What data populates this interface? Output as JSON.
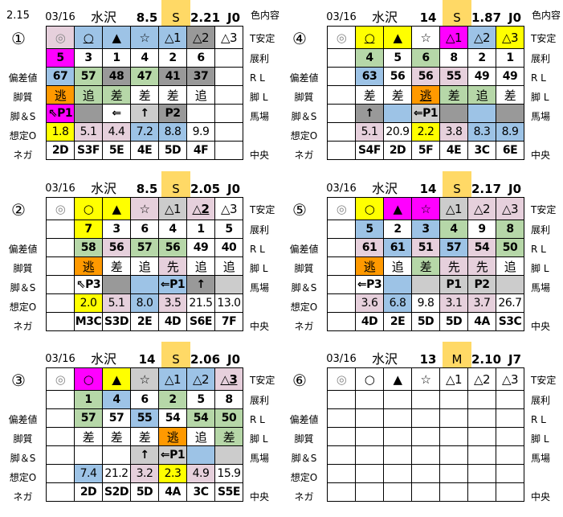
{
  "top_left_value": "2.15",
  "header_color_label": "色内容",
  "left_labels": [
    "",
    "",
    "偏差値",
    "脚質",
    "脚＆S",
    "想定O",
    "ネガ"
  ],
  "right_labels": [
    "T安定",
    "展利",
    "R L",
    "脚 L",
    "馬場",
    "",
    "中央"
  ],
  "colors": {
    "w": "#ffffff",
    "p": "#e6d0dc",
    "b": "#9dc3e6",
    "g": "#b6d7a8",
    "d": "#999999",
    "l": "#cccccc",
    "m": "#ff00ff",
    "y": "#ffff00",
    "o": "#ff9900",
    "track": "#ffd966"
  },
  "panels": [
    {
      "id": "①",
      "date": "03/16",
      "place": "水沢",
      "num": "8.5",
      "track": "S",
      "ratio": "2.21",
      "jv": "J0",
      "show_color_label": true,
      "rows": [
        [
          [
            "◎",
            "p"
          ],
          [
            "○",
            "b",
            "u"
          ],
          [
            "▲",
            "b"
          ],
          [
            "☆",
            "b"
          ],
          [
            "△1",
            "b"
          ],
          [
            "△2",
            "d"
          ],
          [
            "△3",
            "w"
          ]
        ],
        [
          [
            "5",
            "m"
          ],
          [
            "3",
            "w"
          ],
          [
            "1",
            "w"
          ],
          [
            "4",
            "w"
          ],
          [
            "2",
            "w"
          ],
          [
            "6",
            "w"
          ],
          [
            "",
            "w"
          ]
        ],
        [
          [
            "67",
            "b"
          ],
          [
            "57",
            "g"
          ],
          [
            "48",
            "d"
          ],
          [
            "47",
            "g"
          ],
          [
            "41",
            "d"
          ],
          [
            "37",
            "d"
          ],
          [
            "",
            "w"
          ]
        ],
        [
          [
            "逃",
            "o"
          ],
          [
            "追",
            "g"
          ],
          [
            "差",
            "g"
          ],
          [
            "差",
            "w"
          ],
          [
            "差",
            "w"
          ],
          [
            "追",
            "w"
          ],
          [
            "",
            "w"
          ]
        ],
        [
          [
            "⇖P1",
            "m"
          ],
          [
            "",
            "d"
          ],
          [
            "⇐",
            "w"
          ],
          [
            "↑",
            "l"
          ],
          [
            "P2",
            "d"
          ],
          [
            "",
            "w"
          ],
          [
            "",
            "w"
          ]
        ],
        [
          [
            "1.8",
            "y"
          ],
          [
            "5.1",
            "p"
          ],
          [
            "4.4",
            "p"
          ],
          [
            "7.2",
            "b"
          ],
          [
            "8.8",
            "b"
          ],
          [
            "9.9",
            "w"
          ],
          [
            "",
            "w"
          ]
        ],
        [
          [
            "2D",
            "w"
          ],
          [
            "S3F",
            "w"
          ],
          [
            "5E",
            "w"
          ],
          [
            "4E",
            "w"
          ],
          [
            "5D",
            "w"
          ],
          [
            "4F",
            "w"
          ],
          [
            "",
            "w"
          ]
        ]
      ]
    },
    {
      "id": "④",
      "date": "03/16",
      "place": "水沢",
      "num": "14",
      "track": "S",
      "ratio": "1.87",
      "jv": "J0",
      "show_color_label": true,
      "rows": [
        [
          [
            "◎",
            "w"
          ],
          [
            "○",
            "y",
            "u"
          ],
          [
            "▲",
            "y"
          ],
          [
            "☆",
            "w"
          ],
          [
            "△1",
            "m"
          ],
          [
            "△2",
            "b"
          ],
          [
            "△3",
            "y"
          ]
        ],
        [
          [
            "",
            "w"
          ],
          [
            "4",
            "g"
          ],
          [
            "5",
            "w"
          ],
          [
            "6",
            "g"
          ],
          [
            "8",
            "w"
          ],
          [
            "2",
            "w"
          ],
          [
            "1",
            "w"
          ]
        ],
        [
          [
            "",
            "w"
          ],
          [
            "63",
            "b"
          ],
          [
            "56",
            "w"
          ],
          [
            "56",
            "p"
          ],
          [
            "55",
            "p"
          ],
          [
            "49",
            "w"
          ],
          [
            "49",
            "w"
          ]
        ],
        [
          [
            "",
            "w"
          ],
          [
            "差",
            "w"
          ],
          [
            "差",
            "w"
          ],
          [
            "逃",
            "o",
            "u"
          ],
          [
            "差",
            "g"
          ],
          [
            "追",
            "g"
          ],
          [
            "差",
            "w"
          ]
        ],
        [
          [
            "",
            "w"
          ],
          [
            "↑",
            "d"
          ],
          [
            "",
            "b"
          ],
          [
            "⇐P1",
            "l"
          ],
          [
            "",
            "d"
          ],
          [
            "",
            "b"
          ],
          [
            "",
            "d"
          ]
        ],
        [
          [
            "",
            "w"
          ],
          [
            "5.1",
            "p"
          ],
          [
            "20.9",
            "w"
          ],
          [
            "2.2",
            "y"
          ],
          [
            "3.8",
            "p"
          ],
          [
            "8.3",
            "b"
          ],
          [
            "8.9",
            "b"
          ]
        ],
        [
          [
            "",
            "w"
          ],
          [
            "S4F",
            "w"
          ],
          [
            "2D",
            "w"
          ],
          [
            "5F",
            "w"
          ],
          [
            "4E",
            "w"
          ],
          [
            "3C",
            "w"
          ],
          [
            "6E",
            "w"
          ]
        ]
      ]
    },
    {
      "id": "②",
      "date": "03/16",
      "place": "水沢",
      "num": "8.5",
      "track": "S",
      "ratio": "2.05",
      "jv": "J0",
      "show_color_label": false,
      "rows": [
        [
          [
            "◎",
            "w"
          ],
          [
            "○",
            "y"
          ],
          [
            "▲",
            "y"
          ],
          [
            "☆",
            "p"
          ],
          [
            "△1",
            "l"
          ],
          [
            "△2",
            "p",
            "ub"
          ],
          [
            "△3",
            "w"
          ]
        ],
        [
          [
            "",
            "w"
          ],
          [
            "7",
            "y"
          ],
          [
            "3",
            "w"
          ],
          [
            "6",
            "w"
          ],
          [
            "4",
            "w"
          ],
          [
            "1",
            "w"
          ],
          [
            "5",
            "w"
          ]
        ],
        [
          [
            "",
            "w"
          ],
          [
            "58",
            "g"
          ],
          [
            "56",
            "p"
          ],
          [
            "57",
            "g"
          ],
          [
            "56",
            "g"
          ],
          [
            "49",
            "w"
          ],
          [
            "40",
            "w"
          ]
        ],
        [
          [
            "",
            "w"
          ],
          [
            "逃",
            "o"
          ],
          [
            "差",
            "w"
          ],
          [
            "追",
            "w"
          ],
          [
            "先",
            "p"
          ],
          [
            "追",
            "w"
          ],
          [
            "追",
            "w"
          ]
        ],
        [
          [
            "",
            "w"
          ],
          [
            "⇖P3",
            "w"
          ],
          [
            "",
            "d"
          ],
          [
            "",
            "b"
          ],
          [
            "⇐P1",
            "b"
          ],
          [
            "↑",
            "d"
          ],
          [
            "",
            "l"
          ]
        ],
        [
          [
            "",
            "w"
          ],
          [
            "2.0",
            "y"
          ],
          [
            "5.1",
            "p"
          ],
          [
            "8.0",
            "b"
          ],
          [
            "3.5",
            "p"
          ],
          [
            "21.5",
            "w"
          ],
          [
            "13.0",
            "w"
          ]
        ],
        [
          [
            "",
            "w"
          ],
          [
            "M3C",
            "w"
          ],
          [
            "S3D",
            "w"
          ],
          [
            "2E",
            "w"
          ],
          [
            "4D",
            "w"
          ],
          [
            "S6E",
            "w"
          ],
          [
            "7F",
            "w"
          ]
        ]
      ]
    },
    {
      "id": "⑤",
      "date": "03/16",
      "place": "水沢",
      "num": "14",
      "track": "S",
      "ratio": "2.17",
      "jv": "J0",
      "show_color_label": false,
      "rows": [
        [
          [
            "◎",
            "w"
          ],
          [
            "○",
            "y"
          ],
          [
            "▲",
            "m"
          ],
          [
            "☆",
            "m"
          ],
          [
            "△1",
            "l"
          ],
          [
            "△2",
            "p"
          ],
          [
            "△3",
            "p"
          ]
        ],
        [
          [
            "",
            "w"
          ],
          [
            "5",
            "b"
          ],
          [
            "2",
            "w"
          ],
          [
            "3",
            "b"
          ],
          [
            "4",
            "g"
          ],
          [
            "9",
            "w"
          ],
          [
            "8",
            "g"
          ]
        ],
        [
          [
            "",
            "w"
          ],
          [
            "61",
            "p"
          ],
          [
            "61",
            "b"
          ],
          [
            "51",
            "p"
          ],
          [
            "57",
            "b"
          ],
          [
            "54",
            "p"
          ],
          [
            "50",
            "g"
          ]
        ],
        [
          [
            "",
            "w"
          ],
          [
            "逃",
            "o"
          ],
          [
            "追",
            "w"
          ],
          [
            "差",
            "g"
          ],
          [
            "先",
            "p"
          ],
          [
            "先",
            "p"
          ],
          [
            "追",
            "w"
          ]
        ],
        [
          [
            "",
            "w"
          ],
          [
            "⇐P3",
            "w"
          ],
          [
            "",
            "b"
          ],
          [
            "",
            "l"
          ],
          [
            "P1",
            "l"
          ],
          [
            "P2",
            "l"
          ],
          [
            "",
            "l"
          ]
        ],
        [
          [
            "",
            "w"
          ],
          [
            "3.6",
            "p"
          ],
          [
            "6.8",
            "b"
          ],
          [
            "9.8",
            "w"
          ],
          [
            "3.1",
            "p"
          ],
          [
            "3.7",
            "p"
          ],
          [
            "26.7",
            "w"
          ]
        ],
        [
          [
            "",
            "w"
          ],
          [
            "4D",
            "w"
          ],
          [
            "2E",
            "w"
          ],
          [
            "5D",
            "w"
          ],
          [
            "5D",
            "w"
          ],
          [
            "4A",
            "w"
          ],
          [
            "S3C",
            "w"
          ]
        ]
      ]
    },
    {
      "id": "③",
      "date": "03/16",
      "place": "水沢",
      "num": "14",
      "track": "S",
      "ratio": "2.06",
      "jv": "J0",
      "show_color_label": false,
      "rows": [
        [
          [
            "◎",
            "w"
          ],
          [
            "○",
            "m"
          ],
          [
            "▲",
            "y",
            "u"
          ],
          [
            "☆",
            "l"
          ],
          [
            "△1",
            "b"
          ],
          [
            "△2",
            "b"
          ],
          [
            "△3",
            "p",
            "ub"
          ]
        ],
        [
          [
            "",
            "w"
          ],
          [
            "1",
            "g"
          ],
          [
            "4",
            "b"
          ],
          [
            "6",
            "w"
          ],
          [
            "2",
            "g"
          ],
          [
            "5",
            "w"
          ],
          [
            "8",
            "w"
          ]
        ],
        [
          [
            "",
            "w"
          ],
          [
            "57",
            "g"
          ],
          [
            "57",
            "w"
          ],
          [
            "55",
            "b"
          ],
          [
            "54",
            "w"
          ],
          [
            "54",
            "g"
          ],
          [
            "50",
            "g"
          ]
        ],
        [
          [
            "",
            "w"
          ],
          [
            "差",
            "w"
          ],
          [
            "差",
            "w"
          ],
          [
            "差",
            "w"
          ],
          [
            "逃",
            "o"
          ],
          [
            "追",
            "w"
          ],
          [
            "差",
            "g"
          ]
        ],
        [
          [
            "",
            "w"
          ],
          [
            "",
            "w"
          ],
          [
            "",
            "w"
          ],
          [
            "↑",
            "l"
          ],
          [
            "⇐P1",
            "l"
          ],
          [
            "",
            "b"
          ],
          [
            "",
            "l"
          ]
        ],
        [
          [
            "",
            "w"
          ],
          [
            "7.4",
            "b"
          ],
          [
            "21.2",
            "w"
          ],
          [
            "3.2",
            "p"
          ],
          [
            "2.3",
            "y"
          ],
          [
            "4.9",
            "p"
          ],
          [
            "15.9",
            "w"
          ]
        ],
        [
          [
            "",
            "w"
          ],
          [
            "2D",
            "w"
          ],
          [
            "S2D",
            "w"
          ],
          [
            "5D",
            "w"
          ],
          [
            "4A",
            "w"
          ],
          [
            "3C",
            "w"
          ],
          [
            "S5E",
            "w"
          ]
        ]
      ]
    },
    {
      "id": "⑥",
      "date": "03/16",
      "place": "水沢",
      "num": "13",
      "track": "M",
      "ratio": "2.10",
      "jv": "J7",
      "show_color_label": false,
      "rows": [
        [
          [
            "◎",
            "w"
          ],
          [
            "○",
            "w"
          ],
          [
            "▲",
            "w"
          ],
          [
            "☆",
            "w"
          ],
          [
            "△1",
            "w"
          ],
          [
            "△2",
            "w"
          ],
          [
            "△3",
            "w"
          ]
        ],
        [
          [
            "",
            "w"
          ],
          [
            "",
            "w"
          ],
          [
            "",
            "w"
          ],
          [
            "",
            "w"
          ],
          [
            "",
            "w"
          ],
          [
            "",
            "w"
          ],
          [
            "",
            "w"
          ]
        ],
        [
          [
            "",
            "w"
          ],
          [
            "",
            "w"
          ],
          [
            "",
            "w"
          ],
          [
            "",
            "w"
          ],
          [
            "",
            "w"
          ],
          [
            "",
            "w"
          ],
          [
            "",
            "w"
          ]
        ],
        [
          [
            "",
            "w"
          ],
          [
            "",
            "w"
          ],
          [
            "",
            "w"
          ],
          [
            "",
            "w"
          ],
          [
            "",
            "w"
          ],
          [
            "",
            "w"
          ],
          [
            "",
            "w"
          ]
        ],
        [
          [
            "",
            "w"
          ],
          [
            "",
            "w"
          ],
          [
            "",
            "w"
          ],
          [
            "",
            "w"
          ],
          [
            "",
            "w"
          ],
          [
            "",
            "w"
          ],
          [
            "",
            "w"
          ]
        ],
        [
          [
            "",
            "w"
          ],
          [
            "",
            "w"
          ],
          [
            "",
            "w"
          ],
          [
            "",
            "w"
          ],
          [
            "",
            "w"
          ],
          [
            "",
            "w"
          ],
          [
            "",
            "w"
          ]
        ],
        [
          [
            "",
            "w"
          ],
          [
            "",
            "w"
          ],
          [
            "",
            "w"
          ],
          [
            "",
            "w"
          ],
          [
            "",
            "w"
          ],
          [
            "",
            "w"
          ],
          [
            "",
            "w"
          ]
        ]
      ]
    }
  ]
}
